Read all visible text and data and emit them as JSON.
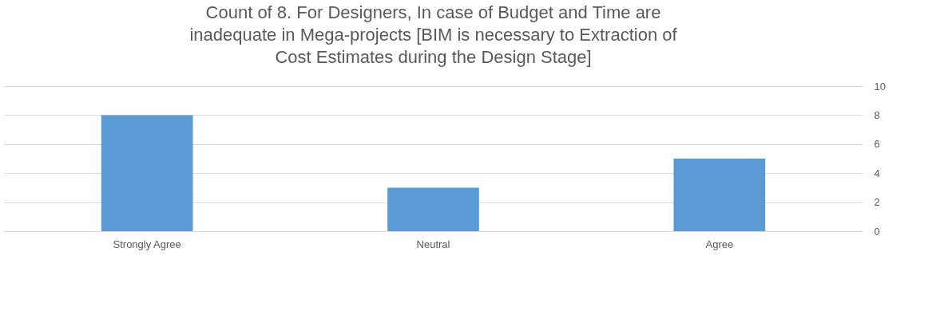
{
  "chart_data": {
    "type": "bar",
    "title": "Count of 8. For Designers, In case of Budget and Time are inadequate in Mega-projects [BIM is necessary to Extraction of Cost Estimates during the Design Stage]",
    "categories": [
      "Strongly Agree",
      "Neutral",
      "Agree"
    ],
    "values": [
      8,
      3,
      5
    ],
    "color": "#5b9bd5",
    "ylim": [
      0,
      10
    ],
    "yticks": [
      0,
      2,
      4,
      6,
      8,
      10
    ],
    "grid": "y",
    "legend": false
  }
}
